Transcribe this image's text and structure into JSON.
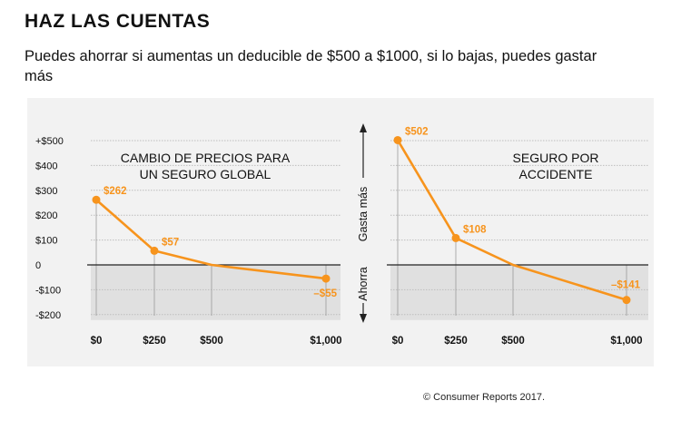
{
  "header": {
    "title": "HAZ LAS CUENTAS",
    "subtitle": "Puedes ahorrar si aumentas un deducible  de $500 a $1000, si lo bajas, puedes gastar más"
  },
  "footer": {
    "credit": "© Consumer Reports 2017."
  },
  "middle_labels": {
    "up": "Gasta más",
    "down": "Ahorra"
  },
  "colors": {
    "line": "#f7941d",
    "grid": "#bdbdbd",
    "shade": "#e0e0e0",
    "panel": "#f2f2f2"
  },
  "chart_data": [
    {
      "type": "line",
      "title": "CAMBIO DE PRECIOS PARA UN SEGURO GLOBAL",
      "title_lines": [
        "CAMBIO DE PRECIOS PARA",
        "UN SEGURO GLOBAL"
      ],
      "x": [
        0,
        250,
        500,
        1000
      ],
      "x_ticks": [
        "$0",
        "$250",
        "$500",
        "$1,000"
      ],
      "y_ticks": [
        {
          "value": 500,
          "label": "+$500"
        },
        {
          "value": 400,
          "label": "$400"
        },
        {
          "value": 300,
          "label": "$300"
        },
        {
          "value": 200,
          "label": "$200"
        },
        {
          "value": 100,
          "label": "$100"
        },
        {
          "value": 0,
          "label": "0"
        },
        {
          "value": -100,
          "label": "-$100"
        },
        {
          "value": -200,
          "label": "-$200"
        }
      ],
      "ylim": [
        -200,
        500
      ],
      "series": [
        {
          "values": [
            262,
            57,
            0,
            -55
          ]
        }
      ],
      "point_labels": [
        "$262",
        "$57",
        "",
        "–$55"
      ],
      "marked": [
        true,
        true,
        false,
        true
      ],
      "grid": true
    },
    {
      "type": "line",
      "title": "SEGURO POR ACCIDENTE",
      "title_lines": [
        "SEGURO POR",
        "ACCIDENTE"
      ],
      "x": [
        0,
        250,
        500,
        1000
      ],
      "x_ticks": [
        "$0",
        "$250",
        "$500",
        "$1,000"
      ],
      "ylim": [
        -200,
        500
      ],
      "series": [
        {
          "values": [
            502,
            108,
            0,
            -141
          ]
        }
      ],
      "point_labels": [
        "$502",
        "$108",
        "",
        "–$141"
      ],
      "marked": [
        true,
        true,
        false,
        true
      ],
      "grid": true
    }
  ]
}
